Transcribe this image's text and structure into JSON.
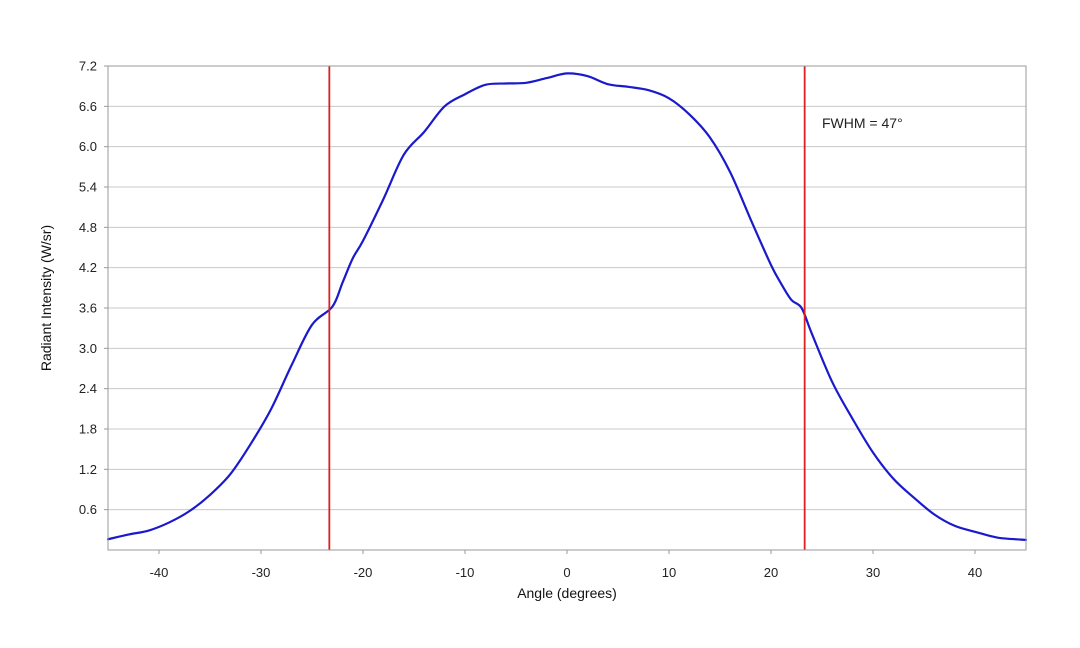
{
  "chart_data": {
    "type": "line",
    "title": "",
    "xlabel": "Angle (degrees)",
    "ylabel": "Radiant Intensity (W/sr)",
    "xlim": [
      -45,
      45
    ],
    "ylim": [
      0,
      7.2
    ],
    "x_ticks": [
      -40,
      -30,
      -20,
      -10,
      0,
      10,
      20,
      30,
      40
    ],
    "x_tick_labels": [
      "-40",
      "-30",
      "-20",
      "-10",
      "0",
      "10",
      "20",
      "30",
      "40"
    ],
    "y_ticks": [
      0.6,
      1.2,
      1.8,
      2.4,
      3.0,
      3.6,
      4.2,
      4.8,
      5.4,
      6.0,
      6.6,
      7.2
    ],
    "y_tick_labels": [
      "0.6",
      "1.2",
      "1.8",
      "2.4",
      "3.0",
      "3.6",
      "4.2",
      "4.8",
      "5.4",
      "6.0",
      "6.6",
      "7.2"
    ],
    "grid": "horizontal",
    "series": [
      {
        "color": "#1a1acc",
        "x": [
          -45,
          -43,
          -41,
          -39,
          -37,
          -35,
          -33,
          -31,
          -29,
          -27,
          -25,
          -23,
          -22,
          -21,
          -20,
          -18,
          -16,
          -14,
          -12,
          -10,
          -8,
          -6,
          -4,
          -2,
          0,
          2,
          4,
          6,
          8,
          10,
          12,
          14,
          16,
          18,
          20,
          21,
          22,
          23,
          24,
          26,
          28,
          30,
          32,
          34,
          36,
          38,
          40,
          42,
          43,
          45
        ],
        "y": [
          0.16,
          0.23,
          0.29,
          0.41,
          0.58,
          0.82,
          1.13,
          1.58,
          2.1,
          2.75,
          3.35,
          3.62,
          3.98,
          4.34,
          4.6,
          5.22,
          5.88,
          6.22,
          6.6,
          6.78,
          6.92,
          6.94,
          6.95,
          7.02,
          7.09,
          7.05,
          6.93,
          6.89,
          6.84,
          6.72,
          6.48,
          6.14,
          5.62,
          4.92,
          4.24,
          3.96,
          3.72,
          3.6,
          3.22,
          2.5,
          1.95,
          1.45,
          1.06,
          0.78,
          0.53,
          0.36,
          0.27,
          0.19,
          0.17,
          0.15
        ]
      }
    ],
    "reference_lines": [
      {
        "x": -23.3,
        "color": "#dd1f1f"
      },
      {
        "x": 23.3,
        "color": "#dd1f1f"
      }
    ],
    "annotations": [
      {
        "text": "FWHM = 47°",
        "x": 25,
        "y": 6.28
      }
    ]
  }
}
